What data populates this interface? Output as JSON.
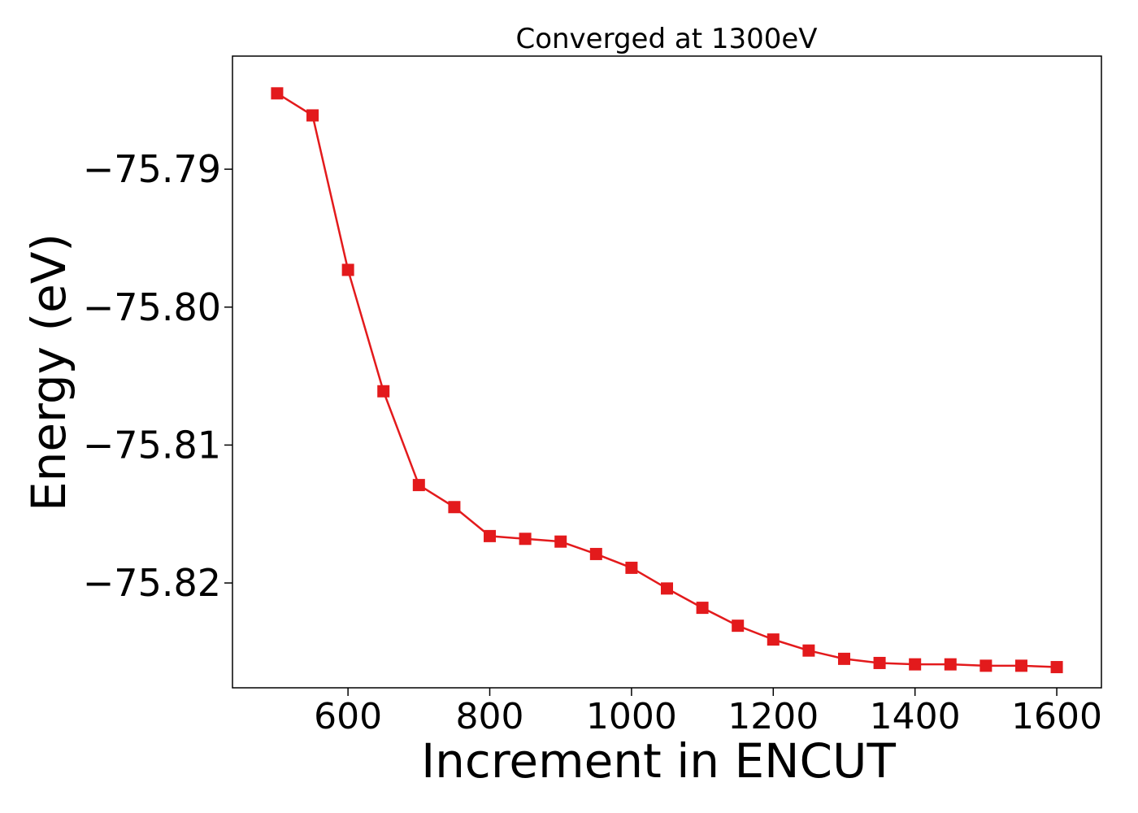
{
  "chart_data": {
    "type": "line",
    "title": "Converged at 1300eV",
    "xlabel": "Increment in ENCUT",
    "ylabel": "Energy (eV)",
    "xlim": [
      437,
      1663
    ],
    "ylim": [
      -75.8276,
      -75.7818
    ],
    "xticks": [
      600,
      800,
      1000,
      1200,
      1400,
      1600
    ],
    "xtick_labels": [
      "600",
      "800",
      "1000",
      "1200",
      "1400",
      "1600"
    ],
    "yticks": [
      -75.79,
      -75.8,
      -75.81,
      -75.82
    ],
    "ytick_labels": [
      "−75.79",
      "−75.80",
      "−75.81",
      "−75.82"
    ],
    "grid": false,
    "series": [
      {
        "color": "#e31a1c",
        "marker": "square",
        "x": [
          500,
          550,
          600,
          650,
          700,
          750,
          800,
          850,
          900,
          950,
          1000,
          1050,
          1100,
          1150,
          1200,
          1250,
          1300,
          1350,
          1400,
          1450,
          1500,
          1550,
          1600
        ],
        "y": [
          -75.7845,
          -75.7861,
          -75.7973,
          -75.8061,
          -75.8129,
          -75.8145,
          -75.8166,
          -75.8168,
          -75.817,
          -75.8179,
          -75.8189,
          -75.8204,
          -75.8218,
          -75.8231,
          -75.8241,
          -75.8249,
          -75.8255,
          -75.8258,
          -75.8259,
          -75.8259,
          -75.826,
          -75.826,
          -75.8261
        ]
      }
    ]
  }
}
